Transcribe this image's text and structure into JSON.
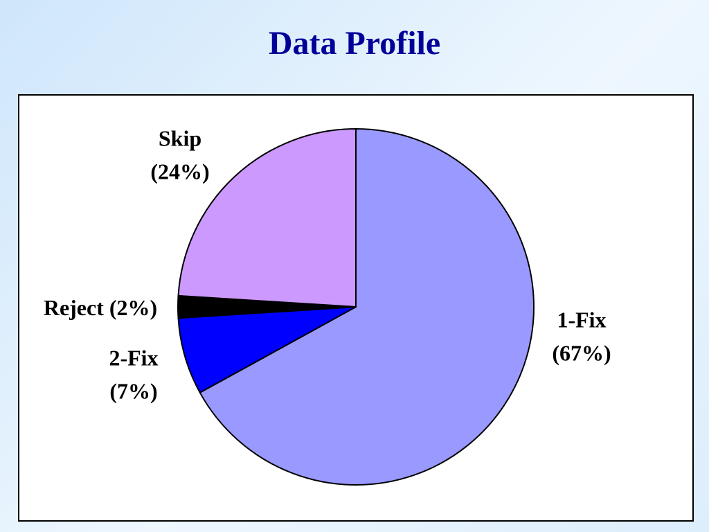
{
  "chart_data": {
    "type": "pie",
    "title": "Data Profile",
    "categories": [
      "1-Fix",
      "2-Fix",
      "Reject",
      "Skip"
    ],
    "values": [
      67,
      7,
      2,
      24
    ],
    "value_labels": [
      "(67%)",
      "(7%)",
      "(2%)",
      "(24%)"
    ],
    "colors": [
      "#9999ff",
      "#0000ff",
      "#000000",
      "#cc99ff"
    ]
  }
}
